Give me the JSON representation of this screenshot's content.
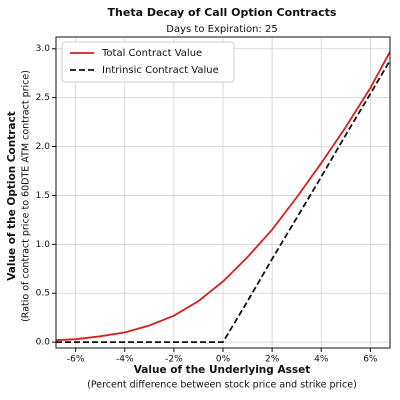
{
  "chart_data": {
    "type": "line",
    "title": "Theta Decay of Call Option Contracts",
    "subtitle": "Days to Expiration:  25",
    "x_label": "Value of the Underlying Asset",
    "x_sublabel": "(Percent difference between stock price and strike price)",
    "y_label": "Value of the Option Contract",
    "y_sublabel": "(Ratio of contract price to 60DTE ATM contract price)",
    "x": [
      -6.8,
      -6,
      -5,
      -4,
      -3,
      -2,
      -1,
      0,
      1,
      2,
      3,
      4,
      5,
      6,
      6.8
    ],
    "series": [
      {
        "name": "Total Contract Value",
        "color": "#d62020",
        "linestyle": "solid",
        "values": [
          0.02,
          0.03,
          0.06,
          0.1,
          0.17,
          0.27,
          0.42,
          0.62,
          0.87,
          1.15,
          1.48,
          1.83,
          2.2,
          2.6,
          2.97
        ]
      },
      {
        "name": "Intrinsic Contract Value",
        "color": "#111111",
        "linestyle": "dashed",
        "values": [
          0,
          0,
          0,
          0,
          0,
          0,
          0,
          0,
          0.42,
          0.85,
          1.27,
          1.69,
          2.12,
          2.54,
          2.88
        ]
      }
    ],
    "xlim": [
      -6.8,
      6.8
    ],
    "ylim": [
      -0.06,
      3.12
    ],
    "xticks": [
      {
        "value": -6,
        "label": "-6%"
      },
      {
        "value": -4,
        "label": "-4%"
      },
      {
        "value": -2,
        "label": "-2%"
      },
      {
        "value": 0,
        "label": "0%"
      },
      {
        "value": 2,
        "label": "2%"
      },
      {
        "value": 4,
        "label": "4%"
      },
      {
        "value": 6,
        "label": "6%"
      }
    ],
    "yticks": [
      {
        "value": 0,
        "label": "0.0"
      },
      0.5,
      {
        "value": 1,
        "label": "1.0"
      },
      1.5,
      {
        "value": 2,
        "label": "2.0"
      },
      2.5,
      {
        "value": 3,
        "label": "3.0"
      }
    ],
    "grid": true,
    "legend": "upper-left"
  }
}
